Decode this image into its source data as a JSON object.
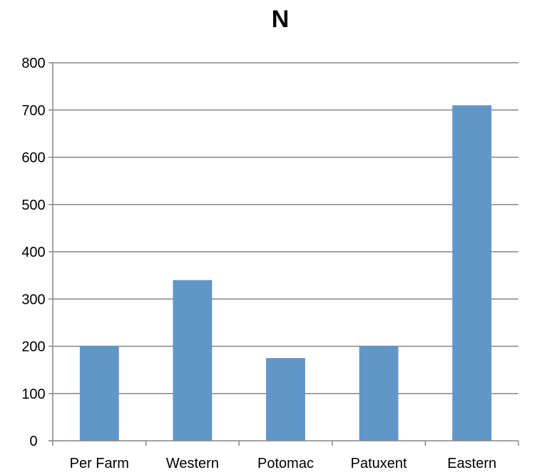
{
  "chart_data": {
    "type": "bar",
    "title": "N",
    "categories": [
      "Per Farm",
      "Western",
      "Potomac",
      "Patuxent",
      "Eastern"
    ],
    "values": [
      200,
      340,
      175,
      200,
      710
    ],
    "ylim": [
      0,
      800
    ],
    "yticks": [
      0,
      100,
      200,
      300,
      400,
      500,
      600,
      700,
      800
    ],
    "xlabel": "",
    "ylabel": "",
    "grid": true,
    "legend": "none",
    "bar_color": "#6196C9",
    "grid_color": "#868686"
  }
}
